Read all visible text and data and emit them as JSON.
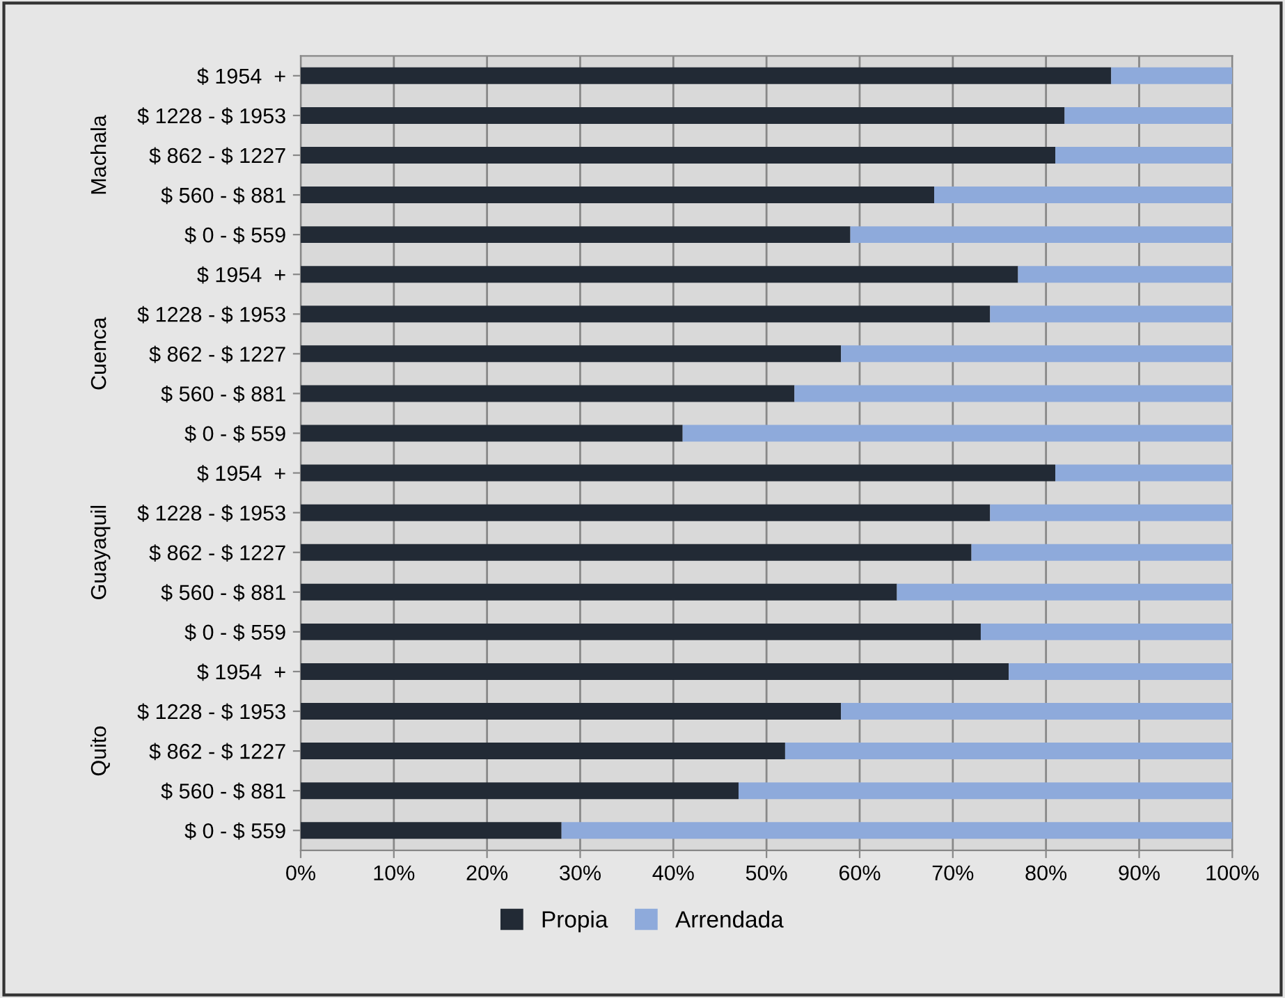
{
  "chart_data": {
    "type": "bar",
    "orientation": "horizontal",
    "stacked": true,
    "categories": [
      "$ 1954  +",
      "$ 1228 - $ 1953",
      "$ 862 - $ 1227",
      "$ 560 - $ 881",
      "$ 0 - $ 559",
      "$ 1954  +",
      "$ 1228 - $ 1953",
      "$ 862 - $ 1227",
      "$ 560 - $ 881",
      "$ 0 - $ 559",
      "$ 1954  +",
      "$ 1228 - $ 1953",
      "$ 862 - $ 1227",
      "$ 560 - $ 881",
      "$ 0 - $ 559",
      "$ 1954  +",
      "$ 1228 - $ 1953",
      "$ 862 - $ 1227",
      "$ 560 - $ 881",
      "$ 0 - $ 559"
    ],
    "annotations": [
      "Machala",
      "Cuenca",
      "Guayaquil",
      "Quito"
    ],
    "series": [
      {
        "name": "Propia",
        "color": "#222a35",
        "values": [
          87,
          82,
          81,
          68,
          59,
          77,
          74,
          58,
          53,
          41,
          81,
          74,
          72,
          64,
          73,
          76,
          58,
          52,
          47,
          28
        ]
      },
      {
        "name": "Arrendada",
        "color": "#8eaadb",
        "values": [
          13,
          18,
          19,
          32,
          41,
          23,
          26,
          42,
          47,
          59,
          19,
          26,
          28,
          36,
          27,
          24,
          42,
          48,
          53,
          72
        ]
      }
    ],
    "xlim": [
      0,
      100
    ],
    "xticks": [
      {
        "value": 0,
        "label": "0%"
      },
      {
        "value": 10,
        "label": "10%"
      },
      {
        "value": 20,
        "label": "20%"
      },
      {
        "value": 30,
        "label": "30%"
      },
      {
        "value": 40,
        "label": "40%"
      },
      {
        "value": 50,
        "label": "50%"
      },
      {
        "value": 60,
        "label": "60%"
      },
      {
        "value": 70,
        "label": "70%"
      },
      {
        "value": 80,
        "label": "80%"
      },
      {
        "value": 90,
        "label": "90%"
      },
      {
        "value": 100,
        "label": "100%"
      }
    ],
    "grid": "x",
    "legend": "bottom"
  }
}
